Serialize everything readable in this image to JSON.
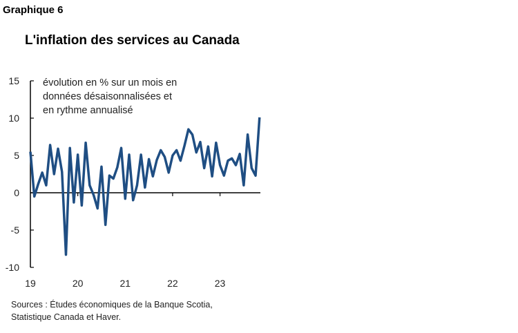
{
  "figure_label": "Graphique 6",
  "chart_data": {
    "type": "line",
    "title": "L'inflation des services au Canada",
    "annotation_lines": [
      "évolution en % sur un mois en",
      "données désaisonnalisées et",
      "en rythme annualisé"
    ],
    "ylim": [
      -10,
      15
    ],
    "yticks": [
      15,
      10,
      5,
      0,
      -5,
      -10
    ],
    "xtick_labels": [
      "19",
      "20",
      "21",
      "22",
      "23"
    ],
    "x_start": "2019-01",
    "frequency": "monthly",
    "color": "#1f4e83",
    "values": [
      5.5,
      -0.5,
      1.2,
      2.7,
      1.0,
      6.4,
      2.5,
      5.9,
      2.8,
      -8.3,
      6.0,
      -1.3,
      5.1,
      -1.7,
      6.7,
      1.0,
      -0.3,
      -2.1,
      3.5,
      -4.3,
      2.3,
      1.9,
      3.4,
      6.0,
      -0.8,
      5.1,
      -1.0,
      1.0,
      5.1,
      0.7,
      4.5,
      2.2,
      4.4,
      5.7,
      4.8,
      2.7,
      5.0,
      5.7,
      4.3,
      6.3,
      8.5,
      7.8,
      5.4,
      6.8,
      3.3,
      6.2,
      2.2,
      6.7,
      3.7,
      2.3,
      4.3,
      4.6,
      3.7,
      5.2,
      1.0,
      7.8,
      3.3,
      2.3,
      10.1
    ]
  },
  "sources": [
    "Sources : Études économiques de la Banque Scotia,",
    "Statistique Canada et Haver."
  ]
}
